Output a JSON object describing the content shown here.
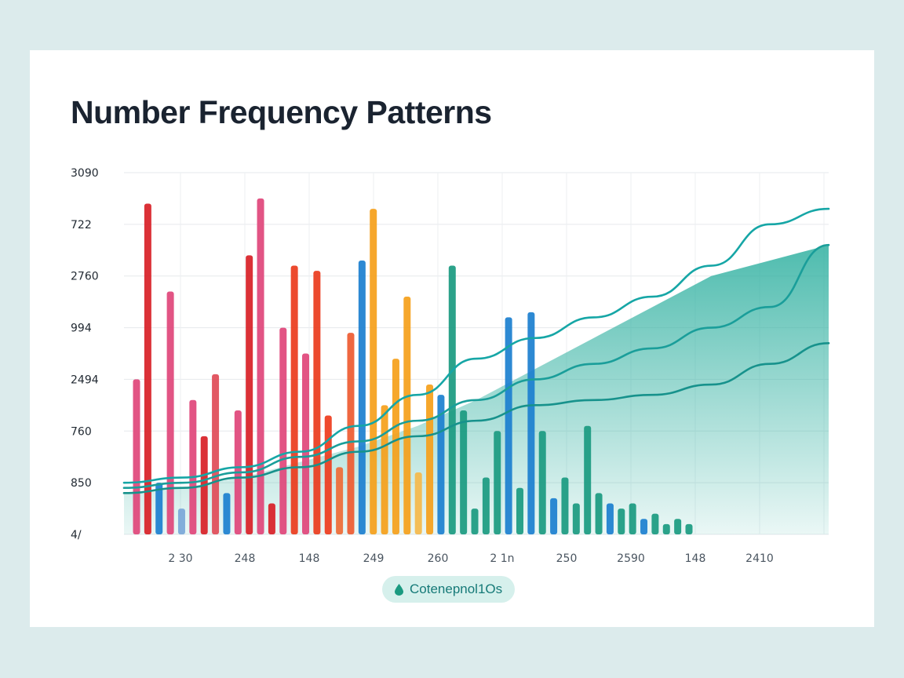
{
  "title": "Number Frequency Patterns",
  "legend_label": "Cotenepnol1Os",
  "chart_data": {
    "type": "bar",
    "title": "Number Frequency Patterns",
    "y_ticks": [
      "3090",
      "722",
      "2760",
      "994",
      "2494",
      "760",
      "850",
      "4/"
    ],
    "x_ticks": [
      "2 30",
      "248",
      "148",
      "249",
      "260",
      "2 1n",
      "250",
      "2590",
      "148",
      "2410"
    ],
    "grid": true,
    "bars": [
      {
        "color": "#e0457a",
        "value": 3.0
      },
      {
        "color": "#d81f26",
        "value": 6.4
      },
      {
        "color": "#1b7fcf",
        "value": 1.0
      },
      {
        "color": "#e0457a",
        "value": 4.7
      },
      {
        "color": "#7aa7d8",
        "value": 0.5
      },
      {
        "color": "#e0457a",
        "value": 2.6
      },
      {
        "color": "#d81f26",
        "value": 1.9
      },
      {
        "color": "#e04b57",
        "value": 3.1
      },
      {
        "color": "#1b7fcf",
        "value": 0.8
      },
      {
        "color": "#e0457a",
        "value": 2.4
      },
      {
        "color": "#d81f26",
        "value": 5.4
      },
      {
        "color": "#e0457a",
        "value": 6.5
      },
      {
        "color": "#d81f26",
        "value": 0.6
      },
      {
        "color": "#e0457a",
        "value": 4.0
      },
      {
        "color": "#ea3b1c",
        "value": 5.2
      },
      {
        "color": "#e0457a",
        "value": 3.5
      },
      {
        "color": "#ea3b1c",
        "value": 5.1
      },
      {
        "color": "#ee3b1c",
        "value": 2.3
      },
      {
        "color": "#ee6a35",
        "value": 1.3
      },
      {
        "color": "#ee5a30",
        "value": 3.9
      },
      {
        "color": "#1b7fcf",
        "value": 5.3
      },
      {
        "color": "#f5a01a",
        "value": 6.3
      },
      {
        "color": "#f5a01a",
        "value": 2.5
      },
      {
        "color": "#f5a01a",
        "value": 3.4
      },
      {
        "color": "#f5a01a",
        "value": 4.6
      },
      {
        "color": "#f5b84a",
        "value": 1.2
      },
      {
        "color": "#f5a01a",
        "value": 2.9
      },
      {
        "color": "#1b7fcf",
        "value": 2.7
      },
      {
        "color": "#1a9a80",
        "value": 5.2
      },
      {
        "color": "#1a9a80",
        "value": 2.4
      },
      {
        "color": "#1a9a80",
        "value": 0.5
      },
      {
        "color": "#1a9a80",
        "value": 1.1
      },
      {
        "color": "#1a9a80",
        "value": 2.0
      },
      {
        "color": "#1b7fcf",
        "value": 4.2
      },
      {
        "color": "#1a9a80",
        "value": 0.9
      },
      {
        "color": "#1b7fcf",
        "value": 4.3
      },
      {
        "color": "#1a9a80",
        "value": 2.0
      },
      {
        "color": "#1b7fcf",
        "value": 0.7
      },
      {
        "color": "#1a9a80",
        "value": 1.1
      },
      {
        "color": "#1a9a80",
        "value": 0.6
      },
      {
        "color": "#1a9a80",
        "value": 2.1
      },
      {
        "color": "#1a9a80",
        "value": 0.8
      },
      {
        "color": "#1b7fcf",
        "value": 0.6
      },
      {
        "color": "#1a9a80",
        "value": 0.5
      },
      {
        "color": "#1a9a80",
        "value": 0.6
      },
      {
        "color": "#1b7fcf",
        "value": 0.3
      },
      {
        "color": "#1a9a80",
        "value": 0.4
      },
      {
        "color": "#1a9a80",
        "value": 0.2
      },
      {
        "color": "#1a9a80",
        "value": 0.3
      },
      {
        "color": "#1a9a80",
        "value": 0.2
      }
    ],
    "lines": [
      {
        "color": "#16a6a6",
        "values": [
          1.0,
          1.1,
          1.3,
          1.6,
          2.1,
          2.7,
          3.4,
          3.8,
          4.2,
          4.6,
          5.2,
          6.0,
          6.3
        ]
      },
      {
        "color": "#1a9e9a",
        "values": [
          0.9,
          1.0,
          1.2,
          1.5,
          1.8,
          2.2,
          2.6,
          3.0,
          3.3,
          3.6,
          4.0,
          4.4,
          5.6
        ]
      },
      {
        "color": "#17928c",
        "values": [
          0.8,
          0.9,
          1.1,
          1.3,
          1.6,
          1.9,
          2.2,
          2.5,
          2.6,
          2.7,
          2.9,
          3.3,
          3.7
        ]
      }
    ],
    "area": {
      "color": "#2fb0a0",
      "values": [
        0.8,
        0.9,
        1.1,
        1.4,
        1.7,
        2.1,
        2.6,
        3.2,
        3.8,
        4.4,
        5.0,
        5.3,
        5.6
      ]
    },
    "ylim": [
      0,
      7
    ]
  }
}
